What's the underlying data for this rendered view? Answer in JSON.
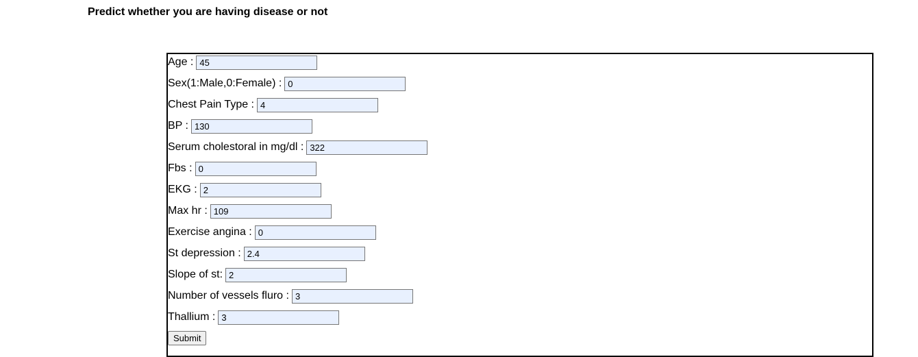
{
  "page": {
    "heading": "Predict whether you are having disease or not"
  },
  "form": {
    "fields": [
      {
        "label": "Age :",
        "value": "45"
      },
      {
        "label": "Sex(1:Male,0:Female) :",
        "value": "0"
      },
      {
        "label": "Chest Pain Type :",
        "value": "4"
      },
      {
        "label": "BP :",
        "value": "130"
      },
      {
        "label": "Serum cholestoral in mg/dl :",
        "value": "322"
      },
      {
        "label": "Fbs :",
        "value": "0"
      },
      {
        "label": "EKG :",
        "value": "2"
      },
      {
        "label": "Max hr :",
        "value": "109"
      },
      {
        "label": "Exercise angina :",
        "value": "0"
      },
      {
        "label": "St depression :",
        "value": "2.4"
      },
      {
        "label": "Slope of st:",
        "value": "2"
      },
      {
        "label": "Number of vessels fluro :",
        "value": "3"
      },
      {
        "label": "Thallium :",
        "value": "3"
      }
    ],
    "submit_label": "Submit"
  }
}
